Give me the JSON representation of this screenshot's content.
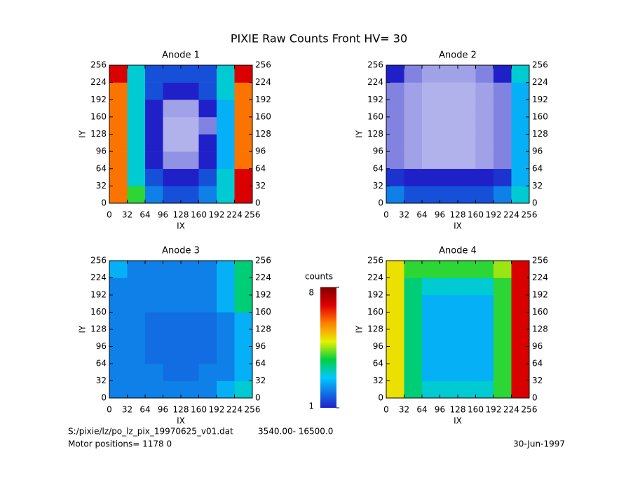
{
  "title": "PIXIE Raw Counts Front HV= 30",
  "chart_data": [
    {
      "type": "heatmap",
      "title": "Anode 1",
      "xlabel": "IX",
      "ylabel": "IY",
      "xlim": [
        0,
        256
      ],
      "ylim": [
        0,
        256
      ],
      "xticks": [
        0,
        32,
        64,
        96,
        128,
        160,
        192,
        224,
        256
      ],
      "yticks": [
        0,
        32,
        64,
        96,
        128,
        160,
        192,
        224,
        256
      ],
      "z": [
        [
          6,
          4,
          2,
          1.5,
          1.5,
          2,
          3,
          7
        ],
        [
          6,
          3,
          1.5,
          1,
          1,
          1.5,
          3,
          7
        ],
        [
          6,
          3,
          1,
          0.7,
          0.7,
          1,
          2.5,
          6
        ],
        [
          6,
          3,
          1,
          0.5,
          0.5,
          1,
          2.5,
          6
        ],
        [
          6,
          3,
          1,
          0.5,
          0.5,
          0.8,
          2.5,
          6
        ],
        [
          6,
          3,
          1,
          0.6,
          0.6,
          1,
          2.5,
          6
        ],
        [
          6,
          3,
          1.5,
          1,
          1,
          1.5,
          3,
          6
        ],
        [
          7,
          3,
          1.5,
          1.5,
          1.5,
          1.5,
          3,
          7
        ]
      ]
    },
    {
      "type": "heatmap",
      "title": "Anode 2",
      "xlabel": "IX",
      "ylabel": "IY",
      "xlim": [
        0,
        256
      ],
      "ylim": [
        0,
        256
      ],
      "xticks": [
        0,
        32,
        64,
        96,
        128,
        160,
        192,
        224,
        256
      ],
      "yticks": [
        0,
        32,
        64,
        96,
        128,
        160,
        192,
        224,
        256
      ],
      "z": [
        [
          2,
          1.5,
          1.5,
          1.5,
          1.5,
          1.5,
          2,
          3
        ],
        [
          1.2,
          1,
          1,
          1,
          1,
          1,
          1.2,
          2.5
        ],
        [
          0.8,
          0.6,
          0.5,
          0.5,
          0.5,
          0.6,
          0.8,
          2.5
        ],
        [
          0.8,
          0.6,
          0.5,
          0.5,
          0.5,
          0.6,
          0.8,
          2.5
        ],
        [
          0.8,
          0.6,
          0.5,
          0.5,
          0.5,
          0.6,
          0.8,
          2.5
        ],
        [
          0.8,
          0.6,
          0.5,
          0.5,
          0.5,
          0.6,
          0.8,
          2.5
        ],
        [
          0.8,
          0.6,
          0.5,
          0.5,
          0.5,
          0.6,
          0.8,
          2.5
        ],
        [
          1,
          0.8,
          0.6,
          0.6,
          0.6,
          0.8,
          1,
          3
        ]
      ]
    },
    {
      "type": "heatmap",
      "title": "Anode 3",
      "xlabel": "IX",
      "ylabel": "IY",
      "xlim": [
        0,
        256
      ],
      "ylim": [
        0,
        256
      ],
      "xticks": [
        0,
        32,
        64,
        96,
        128,
        160,
        192,
        224,
        256
      ],
      "yticks": [
        0,
        32,
        64,
        96,
        128,
        160,
        192,
        224,
        256
      ],
      "z": [
        [
          2,
          2,
          2,
          2,
          2,
          2,
          2.5,
          3
        ],
        [
          2,
          2,
          2,
          1.8,
          1.8,
          2,
          2,
          2.5
        ],
        [
          2,
          2,
          1.8,
          1.8,
          1.8,
          1.8,
          2,
          2.5
        ],
        [
          2,
          2,
          1.8,
          1.8,
          1.8,
          1.8,
          2,
          2.5
        ],
        [
          2,
          2,
          1.8,
          1.8,
          1.8,
          1.8,
          2,
          2.5
        ],
        [
          2,
          2,
          2,
          2,
          2,
          2,
          2.5,
          3.5
        ],
        [
          2,
          2,
          2,
          2,
          2,
          2,
          2.5,
          3.5
        ],
        [
          2.5,
          2,
          2,
          2,
          2,
          2,
          2.5,
          3.5
        ]
      ]
    },
    {
      "type": "heatmap",
      "title": "Anode 4",
      "xlabel": "IX",
      "ylabel": "IY",
      "xlim": [
        0,
        256
      ],
      "ylim": [
        0,
        256
      ],
      "xticks": [
        0,
        32,
        64,
        96,
        128,
        160,
        192,
        224,
        256
      ],
      "yticks": [
        0,
        32,
        64,
        96,
        128,
        160,
        192,
        224,
        256
      ],
      "z": [
        [
          5,
          3.5,
          3,
          3,
          3,
          3,
          4,
          7
        ],
        [
          5,
          3.5,
          2.5,
          2.5,
          2.5,
          2.5,
          4,
          7
        ],
        [
          5,
          3.5,
          2.5,
          2.5,
          2.5,
          2.5,
          4,
          7
        ],
        [
          5,
          3.5,
          2.5,
          2.5,
          2.5,
          2.5,
          4,
          7
        ],
        [
          5,
          3.5,
          2.5,
          2.5,
          2.5,
          2.5,
          4,
          7
        ],
        [
          5,
          3.5,
          2.5,
          2.5,
          2.5,
          2.5,
          4,
          7
        ],
        [
          5,
          3.5,
          3,
          3,
          3,
          3,
          4,
          7
        ],
        [
          5,
          4,
          4,
          4,
          4,
          4,
          4.5,
          7
        ]
      ]
    }
  ],
  "colorbar": {
    "label": "counts",
    "lim": [
      1,
      8
    ],
    "ticks": [
      1,
      8
    ]
  },
  "footer": {
    "file": "S:/pixie/lz/po_lz_pix_19970625_v01.dat",
    "range": "3540.00- 16500.0",
    "motor": "Motor positions= 1178  0",
    "date": "30-Jun-1997"
  }
}
